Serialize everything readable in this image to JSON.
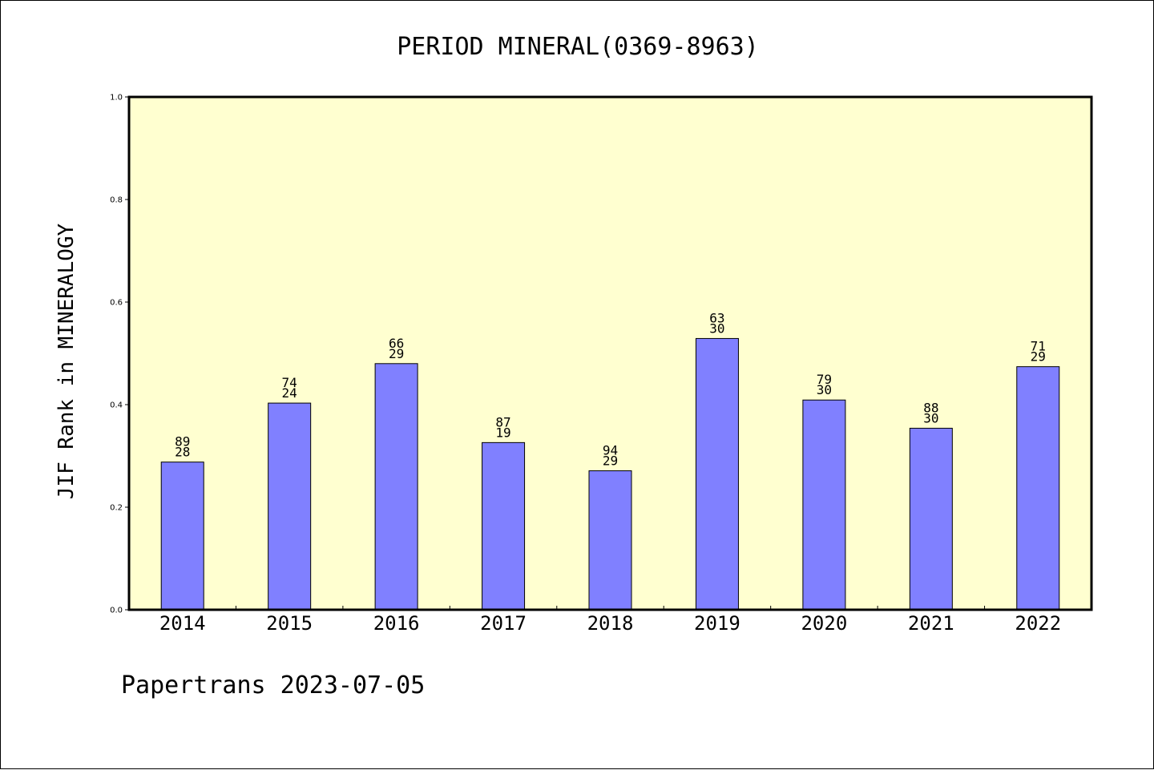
{
  "chart_data": {
    "type": "bar",
    "title": "PERIOD MINERAL(0369-8963)",
    "ylabel": "JIF Rank in MINERALOGY",
    "xlabel": "",
    "categories": [
      "2014",
      "2015",
      "2016",
      "2017",
      "2018",
      "2019",
      "2020",
      "2021",
      "2022"
    ],
    "values": [
      0.288,
      0.403,
      0.48,
      0.326,
      0.271,
      0.529,
      0.409,
      0.354,
      0.474
    ],
    "bar_labels": [
      {
        "top": "89",
        "bottom": "28"
      },
      {
        "top": "74",
        "bottom": "24"
      },
      {
        "top": "66",
        "bottom": "29"
      },
      {
        "top": "87",
        "bottom": "19"
      },
      {
        "top": "94",
        "bottom": "29"
      },
      {
        "top": "63",
        "bottom": "30"
      },
      {
        "top": "79",
        "bottom": "30"
      },
      {
        "top": "88",
        "bottom": "30"
      },
      {
        "top": "71",
        "bottom": "29"
      }
    ],
    "ylim": [
      0.0,
      1.0
    ],
    "yticks": [
      "0.0",
      "0.2",
      "0.4",
      "0.6",
      "0.8",
      "1.0"
    ],
    "grid": false,
    "colors": {
      "bar_fill": "#8080ff",
      "plot_background": "#ffffd0",
      "axes": "#000000"
    }
  },
  "footer": "Papertrans 2023-07-05"
}
